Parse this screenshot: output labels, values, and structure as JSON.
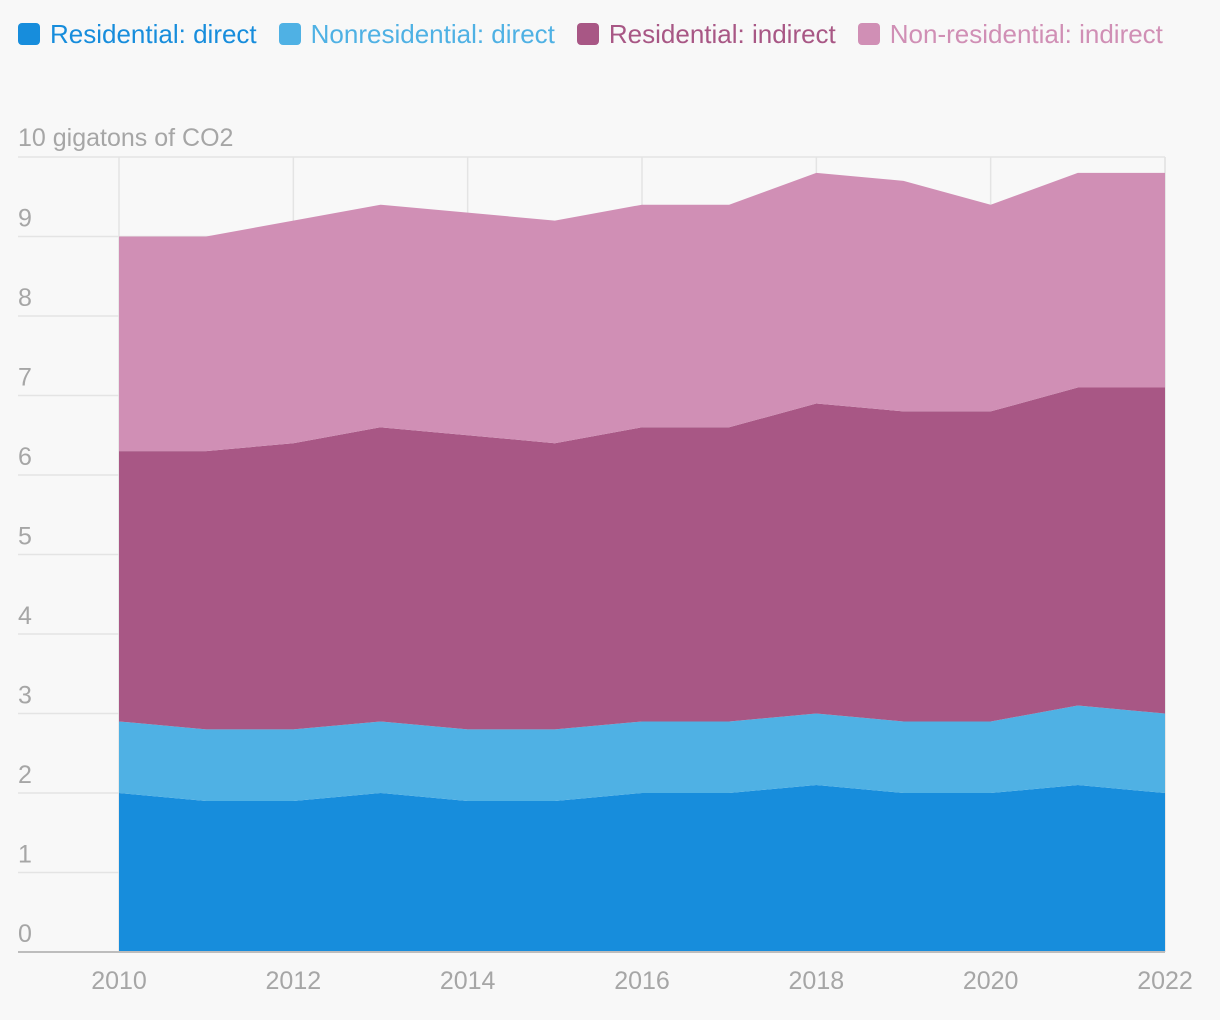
{
  "chart_data": {
    "type": "area",
    "stacked": true,
    "x": [
      2010,
      2011,
      2012,
      2013,
      2014,
      2015,
      2016,
      2017,
      2018,
      2019,
      2020,
      2021,
      2022
    ],
    "series": [
      {
        "name": "Residential: direct",
        "color": "#178ddc",
        "values": [
          2.0,
          1.9,
          1.9,
          2.0,
          1.9,
          1.9,
          2.0,
          2.0,
          2.1,
          2.0,
          2.0,
          2.1,
          2.0
        ]
      },
      {
        "name": "Nonresidential: direct",
        "color": "#4fb1e4",
        "values": [
          0.9,
          0.9,
          0.9,
          0.9,
          0.9,
          0.9,
          0.9,
          0.9,
          0.9,
          0.9,
          0.9,
          1.0,
          1.0
        ]
      },
      {
        "name": "Residential: indirect",
        "color": "#a85785",
        "values": [
          3.4,
          3.5,
          3.6,
          3.7,
          3.7,
          3.6,
          3.7,
          3.7,
          3.9,
          3.9,
          3.9,
          4.0,
          4.1
        ]
      },
      {
        "name": "Non-residential: indirect",
        "color": "#d08fb5",
        "values": [
          2.7,
          2.7,
          2.8,
          2.8,
          2.8,
          2.8,
          2.8,
          2.8,
          2.9,
          2.9,
          2.6,
          2.7,
          2.7
        ]
      }
    ],
    "ylabel": "10 gigatons of CO2",
    "ylim": [
      0,
      10
    ],
    "yticks": [
      "0",
      "1",
      "2",
      "3",
      "4",
      "5",
      "6",
      "7",
      "8",
      "9"
    ],
    "xticks": [
      "2010",
      "2012",
      "2014",
      "2016",
      "2018",
      "2020",
      "2022"
    ],
    "xlim": [
      2010,
      2022
    ],
    "grid": true,
    "legend_position": "top-left"
  }
}
